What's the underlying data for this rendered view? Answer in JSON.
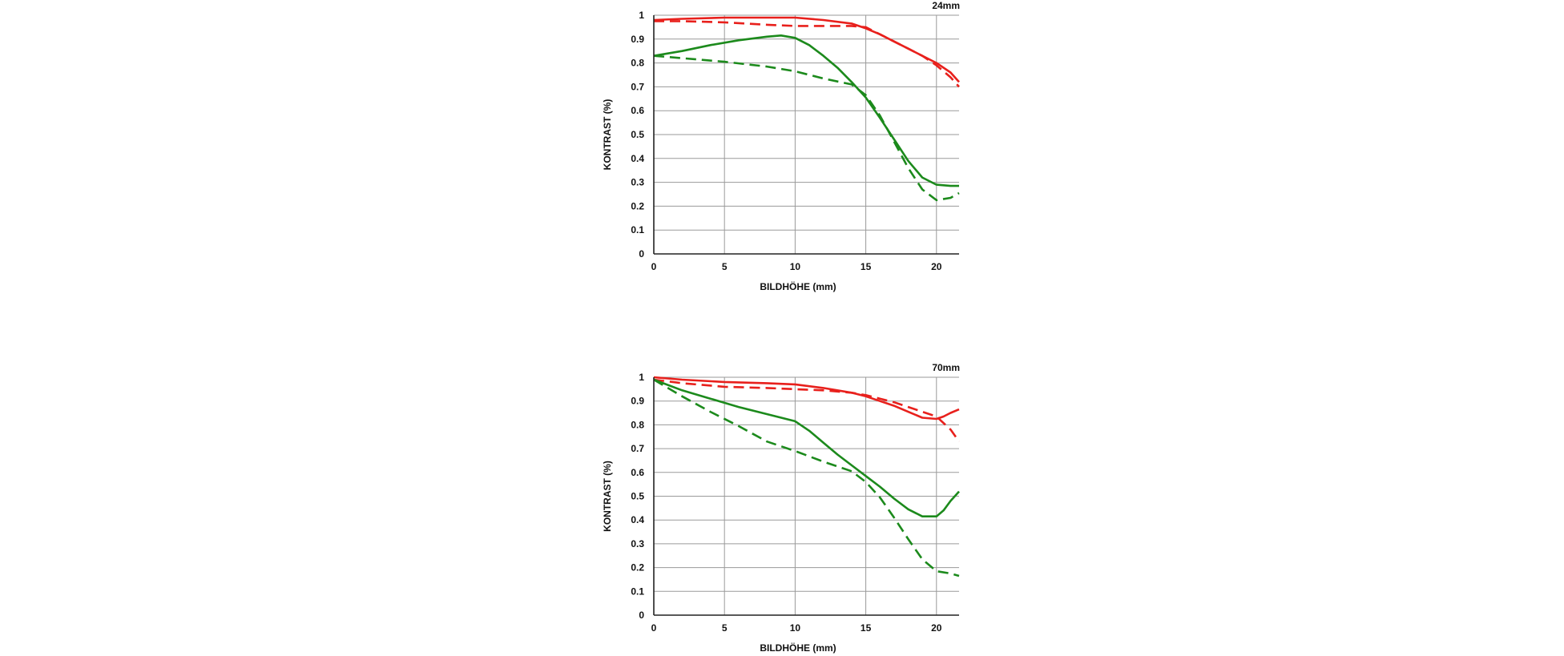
{
  "chart_data": [
    {
      "type": "line",
      "title": "24mm",
      "xlabel": "BILDHÖHE (mm)",
      "ylabel": "KONTRAST (%)",
      "xlim": [
        0,
        21.6
      ],
      "ylim": [
        0,
        1
      ],
      "xticks": [
        0,
        5,
        10,
        15,
        20
      ],
      "yticks": [
        0,
        0.1,
        0.2,
        0.3,
        0.4,
        0.5,
        0.6,
        0.7,
        0.8,
        0.9,
        1
      ],
      "ytick_labels": [
        "0",
        "0.1",
        "0.2",
        "0.3",
        "0.4",
        "0.5",
        "0.6",
        "0.7",
        "0.8",
        "0.9",
        "1"
      ],
      "grid": true,
      "series": [
        {
          "name": "red-solid",
          "color": "#e8201c",
          "dashed": false,
          "x": [
            0,
            2,
            5,
            8,
            10,
            12,
            14,
            15,
            16,
            17,
            18,
            19,
            20,
            21,
            21.6
          ],
          "y": [
            0.98,
            0.985,
            0.99,
            0.99,
            0.99,
            0.98,
            0.965,
            0.945,
            0.92,
            0.89,
            0.86,
            0.83,
            0.8,
            0.76,
            0.72
          ]
        },
        {
          "name": "red-dashed",
          "color": "#e8201c",
          "dashed": true,
          "x": [
            0,
            2,
            5,
            8,
            10,
            12,
            14,
            15,
            16,
            17,
            18,
            19,
            20,
            21,
            21.6
          ],
          "y": [
            0.975,
            0.975,
            0.97,
            0.96,
            0.955,
            0.955,
            0.955,
            0.95,
            0.92,
            0.89,
            0.86,
            0.83,
            0.79,
            0.74,
            0.7
          ]
        },
        {
          "name": "green-solid",
          "color": "#1c8a1c",
          "dashed": false,
          "x": [
            0,
            2,
            4,
            6,
            8,
            9,
            10,
            11,
            12,
            13,
            14,
            15,
            16,
            17,
            18,
            19,
            20,
            21,
            21.6
          ],
          "y": [
            0.83,
            0.85,
            0.875,
            0.895,
            0.91,
            0.915,
            0.905,
            0.875,
            0.83,
            0.78,
            0.72,
            0.655,
            0.57,
            0.48,
            0.39,
            0.32,
            0.29,
            0.285,
            0.285
          ]
        },
        {
          "name": "green-dashed",
          "color": "#1c8a1c",
          "dashed": true,
          "x": [
            0,
            2,
            5,
            8,
            10,
            12,
            14,
            15,
            16,
            17,
            18,
            19,
            20,
            21,
            21.6
          ],
          "y": [
            0.83,
            0.82,
            0.805,
            0.785,
            0.765,
            0.735,
            0.71,
            0.665,
            0.58,
            0.47,
            0.36,
            0.27,
            0.225,
            0.235,
            0.255
          ]
        }
      ]
    },
    {
      "type": "line",
      "title": "70mm",
      "xlabel": "BILDHÖHE (mm)",
      "ylabel": "KONTRAST (%)",
      "xlim": [
        0,
        21.6
      ],
      "ylim": [
        0,
        1
      ],
      "xticks": [
        0,
        5,
        10,
        15,
        20
      ],
      "yticks": [
        0,
        0.1,
        0.2,
        0.3,
        0.4,
        0.5,
        0.6,
        0.7,
        0.8,
        0.9,
        1
      ],
      "ytick_labels": [
        "0",
        "0.1",
        "0.2",
        "0.3",
        "0.4",
        "0.5",
        "0.6",
        "0.7",
        "0.8",
        "0.9",
        "1"
      ],
      "grid": true,
      "series": [
        {
          "name": "red-solid",
          "color": "#e8201c",
          "dashed": false,
          "x": [
            0,
            2,
            5,
            8,
            10,
            12,
            14,
            15,
            16,
            17,
            18,
            19,
            20,
            20.5,
            21,
            21.6
          ],
          "y": [
            1.0,
            0.99,
            0.98,
            0.975,
            0.97,
            0.955,
            0.935,
            0.92,
            0.9,
            0.88,
            0.855,
            0.83,
            0.825,
            0.835,
            0.85,
            0.865
          ]
        },
        {
          "name": "red-dashed",
          "color": "#e8201c",
          "dashed": true,
          "x": [
            0,
            2,
            5,
            8,
            10,
            12,
            14,
            15,
            16,
            17,
            18,
            19,
            20,
            21,
            21.6
          ],
          "y": [
            0.99,
            0.975,
            0.96,
            0.955,
            0.95,
            0.945,
            0.935,
            0.925,
            0.91,
            0.895,
            0.875,
            0.855,
            0.835,
            0.78,
            0.73
          ]
        },
        {
          "name": "green-solid",
          "color": "#1c8a1c",
          "dashed": false,
          "x": [
            0,
            2,
            4,
            6,
            8,
            10,
            11,
            12,
            13,
            14,
            15,
            16,
            17,
            18,
            19,
            20,
            20.5,
            21,
            21.6
          ],
          "y": [
            0.99,
            0.945,
            0.91,
            0.875,
            0.845,
            0.815,
            0.775,
            0.725,
            0.675,
            0.63,
            0.585,
            0.54,
            0.49,
            0.445,
            0.415,
            0.415,
            0.44,
            0.48,
            0.52
          ]
        },
        {
          "name": "green-dashed",
          "color": "#1c8a1c",
          "dashed": true,
          "x": [
            0,
            2,
            4,
            6,
            8,
            10,
            12,
            14,
            15,
            16,
            17,
            18,
            19,
            20,
            21,
            21.6
          ],
          "y": [
            0.99,
            0.92,
            0.855,
            0.795,
            0.73,
            0.69,
            0.645,
            0.605,
            0.56,
            0.495,
            0.41,
            0.32,
            0.235,
            0.185,
            0.175,
            0.165
          ]
        }
      ]
    }
  ]
}
